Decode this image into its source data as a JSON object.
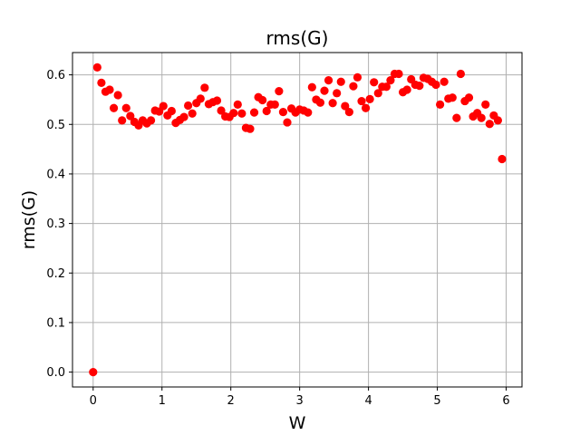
{
  "chart_data": {
    "type": "scatter",
    "title": "rms(G)",
    "xlabel": "W",
    "ylabel": "rms(G)",
    "xlim": [
      -0.3,
      6.23
    ],
    "ylim": [
      -0.03,
      0.645
    ],
    "xticks": [
      0,
      1,
      2,
      3,
      4,
      5,
      6
    ],
    "xtick_labels": [
      "0",
      "1",
      "2",
      "3",
      "4",
      "5",
      "6"
    ],
    "yticks": [
      0.0,
      0.1,
      0.2,
      0.3,
      0.4,
      0.5,
      0.6
    ],
    "ytick_labels": [
      "0.0",
      "0.1",
      "0.2",
      "0.3",
      "0.4",
      "0.5",
      "0.6"
    ],
    "grid": true,
    "marker_color": "#ff0000",
    "series": [
      {
        "x": [
          0.0,
          0.06,
          0.12,
          0.18,
          0.24,
          0.3,
          0.36,
          0.42,
          0.48,
          0.54,
          0.6,
          0.66,
          0.72,
          0.78,
          0.84,
          0.9,
          0.96,
          1.02,
          1.08,
          1.14,
          1.2,
          1.26,
          1.32,
          1.38,
          1.44,
          1.5,
          1.56,
          1.62,
          1.68,
          1.74,
          1.8,
          1.86,
          1.92,
          1.98,
          2.04,
          2.1,
          2.16,
          2.22,
          2.28,
          2.34,
          2.4,
          2.46,
          2.52,
          2.58,
          2.64,
          2.7,
          2.76,
          2.82,
          2.88,
          2.94,
          3.0,
          3.06,
          3.12,
          3.18,
          3.24,
          3.3,
          3.36,
          3.42,
          3.48,
          3.54,
          3.6,
          3.66,
          3.72,
          3.78,
          3.84,
          3.9,
          3.96,
          4.02,
          4.08,
          4.14,
          4.2,
          4.26,
          4.32,
          4.38,
          4.44,
          4.5,
          4.56,
          4.62,
          4.68,
          4.74,
          4.8,
          4.86,
          4.92,
          4.98,
          5.04,
          5.1,
          5.16,
          5.22,
          5.28,
          5.34,
          5.4,
          5.46,
          5.52,
          5.58,
          5.64,
          5.7,
          5.76,
          5.82,
          5.88,
          5.94
        ],
        "y": [
          0.0,
          0.615,
          0.584,
          0.566,
          0.57,
          0.533,
          0.559,
          0.508,
          0.533,
          0.517,
          0.505,
          0.498,
          0.508,
          0.502,
          0.508,
          0.528,
          0.526,
          0.537,
          0.518,
          0.527,
          0.503,
          0.509,
          0.515,
          0.538,
          0.522,
          0.543,
          0.552,
          0.574,
          0.541,
          0.545,
          0.548,
          0.528,
          0.516,
          0.515,
          0.523,
          0.54,
          0.522,
          0.493,
          0.491,
          0.524,
          0.555,
          0.549,
          0.527,
          0.54,
          0.54,
          0.567,
          0.525,
          0.504,
          0.532,
          0.524,
          0.53,
          0.528,
          0.524,
          0.575,
          0.55,
          0.544,
          0.568,
          0.589,
          0.543,
          0.563,
          0.586,
          0.537,
          0.525,
          0.577,
          0.595,
          0.547,
          0.533,
          0.551,
          0.585,
          0.563,
          0.576,
          0.576,
          0.589,
          0.602,
          0.602,
          0.565,
          0.57,
          0.591,
          0.58,
          0.578,
          0.594,
          0.592,
          0.586,
          0.58,
          0.54,
          0.586,
          0.552,
          0.554,
          0.513,
          0.602,
          0.547,
          0.554,
          0.516,
          0.523,
          0.513,
          0.54,
          0.501,
          0.518,
          0.508,
          0.43
        ]
      }
    ]
  }
}
